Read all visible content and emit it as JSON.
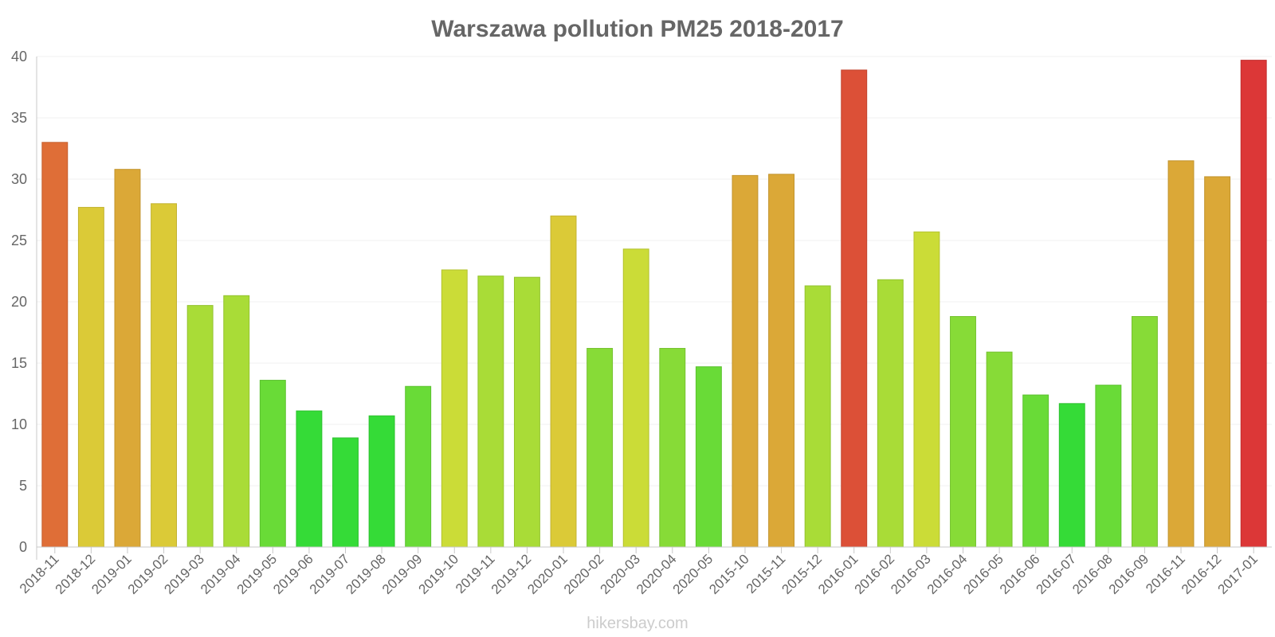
{
  "credit": "hikersbay.com",
  "chart_data": {
    "type": "bar",
    "title": "Warszawa pollution PM25 2018-2017",
    "xlabel": "",
    "ylabel": "",
    "ylim": [
      0,
      40
    ],
    "yticks": [
      "0",
      "5",
      "10",
      "15",
      "20",
      "25",
      "30",
      "35",
      "40"
    ],
    "grid": true,
    "categories": [
      "2018-11",
      "2018-12",
      "2019-01",
      "2019-02",
      "2019-03",
      "2019-04",
      "2019-05",
      "2019-06",
      "2019-07",
      "2019-08",
      "2019-09",
      "2019-10",
      "2019-11",
      "2019-12",
      "2020-01",
      "2020-02",
      "2020-03",
      "2020-04",
      "2020-05",
      "2015-10",
      "2015-11",
      "2015-12",
      "2016-01",
      "2016-02",
      "2016-03",
      "2016-04",
      "2016-05",
      "2016-06",
      "2016-07",
      "2016-08",
      "2016-09",
      "2016-11",
      "2016-12",
      "2017-01"
    ],
    "values": [
      33.0,
      27.7,
      30.8,
      28.0,
      19.7,
      20.5,
      13.6,
      11.1,
      8.9,
      10.7,
      13.1,
      22.6,
      22.1,
      22.0,
      27.0,
      16.2,
      24.3,
      16.2,
      14.7,
      30.3,
      30.4,
      21.3,
      38.9,
      21.8,
      25.7,
      18.8,
      15.9,
      12.4,
      11.7,
      13.2,
      18.8,
      31.5,
      30.2,
      39.7
    ],
    "colors": [
      "#df6e37",
      "#dbca37",
      "#dba837",
      "#dbca37",
      "#a9dc37",
      "#a9dc37",
      "#69db37",
      "#35db37",
      "#35db37",
      "#35db37",
      "#69db37",
      "#cbdc37",
      "#a9dc37",
      "#a9dc37",
      "#dbca37",
      "#87db37",
      "#cbdc37",
      "#87db37",
      "#69db37",
      "#dba837",
      "#dba837",
      "#a9dc37",
      "#dc5037",
      "#a9dc37",
      "#cbdc37",
      "#87db37",
      "#87db37",
      "#69db37",
      "#35db37",
      "#69db37",
      "#87db37",
      "#dba837",
      "#dba837",
      "#dc3737"
    ],
    "strokes": [
      "#c55f2e",
      "#c2b230",
      "#c2942e",
      "#c2b230",
      "#93c22f",
      "#93c22f",
      "#5bc12f",
      "#2dc12f",
      "#2dc12f",
      "#2dc12f",
      "#5bc12f",
      "#b3c22f",
      "#93c22f",
      "#93c22f",
      "#c2b230",
      "#75c12f",
      "#b3c22f",
      "#75c12f",
      "#5bc12f",
      "#c2942e",
      "#c2942e",
      "#93c22f",
      "#c2432e",
      "#93c22f",
      "#b3c22f",
      "#75c12f",
      "#75c12f",
      "#5bc12f",
      "#2dc12f",
      "#5bc12f",
      "#75c12f",
      "#c2942e",
      "#c2942e",
      "#c22e2e"
    ]
  }
}
